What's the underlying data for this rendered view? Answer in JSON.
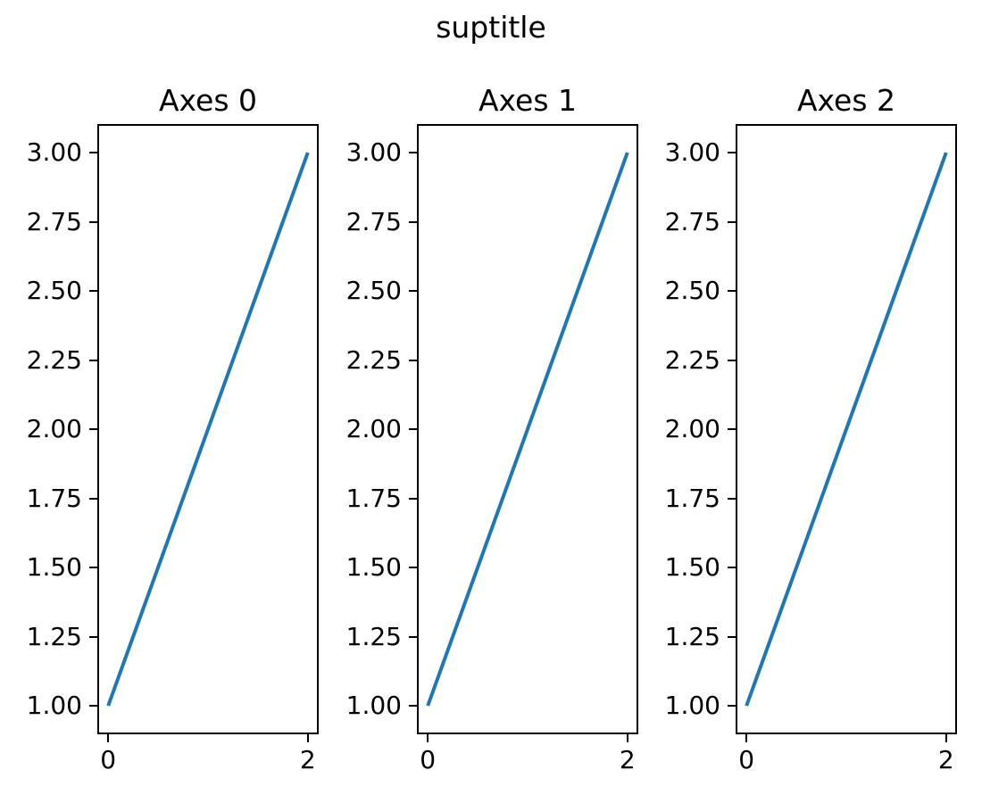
{
  "figure": {
    "suptitle": "suptitle",
    "background_color": "#ffffff",
    "text_color": "#000000"
  },
  "chart_data": [
    {
      "type": "line",
      "title": "Axes 0",
      "x": [
        0,
        2
      ],
      "y": [
        1,
        3
      ],
      "xlim": [
        -0.1,
        2.1
      ],
      "ylim": [
        0.9,
        3.1
      ],
      "xticks": [
        0,
        2
      ],
      "xtick_labels": [
        "0",
        "2"
      ],
      "yticks": [
        1.0,
        1.25,
        1.5,
        1.75,
        2.0,
        2.25,
        2.5,
        2.75,
        3.0
      ],
      "ytick_labels": [
        "1.00",
        "1.25",
        "1.50",
        "1.75",
        "2.00",
        "2.25",
        "2.50",
        "2.75",
        "3.00"
      ],
      "line_color": "#1f77b4",
      "grid": false,
      "legend": null
    },
    {
      "type": "line",
      "title": "Axes 1",
      "x": [
        0,
        2
      ],
      "y": [
        1,
        3
      ],
      "xlim": [
        -0.1,
        2.1
      ],
      "ylim": [
        0.9,
        3.1
      ],
      "xticks": [
        0,
        2
      ],
      "xtick_labels": [
        "0",
        "2"
      ],
      "yticks": [
        1.0,
        1.25,
        1.5,
        1.75,
        2.0,
        2.25,
        2.5,
        2.75,
        3.0
      ],
      "ytick_labels": [
        "1.00",
        "1.25",
        "1.50",
        "1.75",
        "2.00",
        "2.25",
        "2.50",
        "2.75",
        "3.00"
      ],
      "line_color": "#1f77b4",
      "grid": false,
      "legend": null
    },
    {
      "type": "line",
      "title": "Axes 2",
      "x": [
        0,
        2
      ],
      "y": [
        1,
        3
      ],
      "xlim": [
        -0.1,
        2.1
      ],
      "ylim": [
        0.9,
        3.1
      ],
      "xticks": [
        0,
        2
      ],
      "xtick_labels": [
        "0",
        "2"
      ],
      "yticks": [
        1.0,
        1.25,
        1.5,
        1.75,
        2.0,
        2.25,
        2.5,
        2.75,
        3.0
      ],
      "ytick_labels": [
        "1.00",
        "1.25",
        "1.50",
        "1.75",
        "2.00",
        "2.25",
        "2.50",
        "2.75",
        "3.00"
      ],
      "line_color": "#1f77b4",
      "grid": false,
      "legend": null
    }
  ]
}
